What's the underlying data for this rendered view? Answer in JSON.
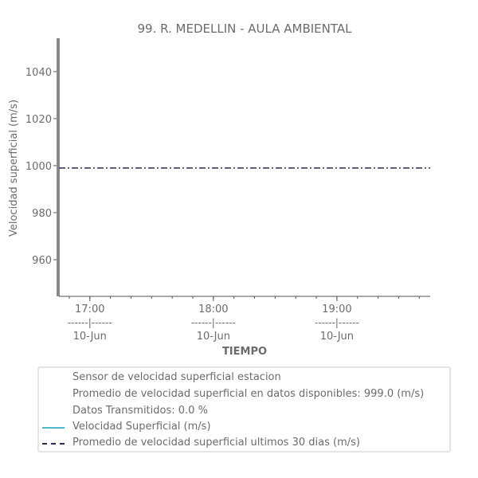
{
  "chart_data": {
    "type": "line",
    "title": "99. R. MEDELLIN - AULA AMBIENTAL",
    "xlabel": "TIEMPO",
    "ylabel": "Velocidad superficial (m/s)",
    "ylim": [
      944.4,
      1054.2
    ],
    "xlim_hours": [
      16.75,
      19.755
    ],
    "yticks": [
      960,
      980,
      1000,
      1020,
      1040
    ],
    "xticks": [
      {
        "hour": 17,
        "time": "17:00",
        "sep": "------|------",
        "date": "10-Jun"
      },
      {
        "hour": 18,
        "time": "18:00",
        "sep": "------|------",
        "date": "10-Jun"
      },
      {
        "hour": 19,
        "time": "19:00",
        "sep": "------|------",
        "date": "10-Jun"
      }
    ],
    "series": [
      {
        "name": "Velocidad Superficial (m/s)",
        "color": "#4fb8c9",
        "style": "solid",
        "values": []
      },
      {
        "name": "Promedio de velocidad superficial ultimos 30 dias (m/s)",
        "color": "#2b2d4e",
        "style": "dashdot",
        "value": 999.0
      }
    ],
    "legend": {
      "placement": "bottom",
      "info": [
        "Sensor de velocidad superficial estacion",
        "Promedio de velocidad superficial en datos disponibles: 999.0 (m/s)",
        "Datos Transmitidos: 0.0 %"
      ]
    }
  }
}
